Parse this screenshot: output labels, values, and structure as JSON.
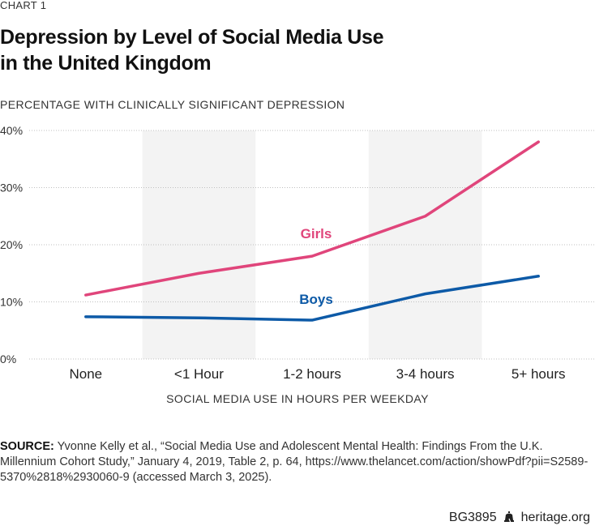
{
  "header": {
    "chart_number": "CHART 1",
    "title_line1": "Depression by Level of Social Media Use",
    "title_line2": "in the United Kingdom",
    "y_axis_label": "PERCENTAGE WITH CLINICALLY SIGNIFICANT DEPRESSION"
  },
  "chart_data": {
    "type": "line",
    "title": "Depression by Level of Social Media Use in the United Kingdom",
    "ylabel": "PERCENTAGE WITH CLINICALLY SIGNIFICANT DEPRESSION",
    "xlabel": "SOCIAL MEDIA USE IN HOURS PER WEEKDAY",
    "categories": [
      "None",
      "<1 Hour",
      "1-2 hours",
      "3-4 hours",
      "5+ hours"
    ],
    "ylim": [
      0,
      40
    ],
    "yticks": [
      0,
      10,
      20,
      30,
      40
    ],
    "ytick_labels": [
      "0%",
      "10%",
      "20%",
      "30%",
      "40%"
    ],
    "grid": true,
    "series": [
      {
        "name": "Girls",
        "color": "#e0457b",
        "values": [
          11.2,
          15.0,
          18.0,
          25.0,
          38.0
        ]
      },
      {
        "name": "Boys",
        "color": "#0d5aa7",
        "values": [
          7.4,
          7.2,
          6.8,
          11.4,
          14.5
        ]
      }
    ]
  },
  "footer": {
    "source_label": "SOURCE:",
    "source_text": "Yvonne Kelly et al., “Social Media Use and Adolescent Mental Health: Findings From the U.K. Millennium Cohort Study,” January 4, 2019, Table 2, p. 64, https://www.thelancet.com/action/showPdf?pii=S2589-5370%2818%2930060-9 (accessed March 3, 2025).",
    "code": "BG3895",
    "site": "heritage.org"
  },
  "colors": {
    "band": "#f3f3f3",
    "grid": "#bfbfbf"
  }
}
